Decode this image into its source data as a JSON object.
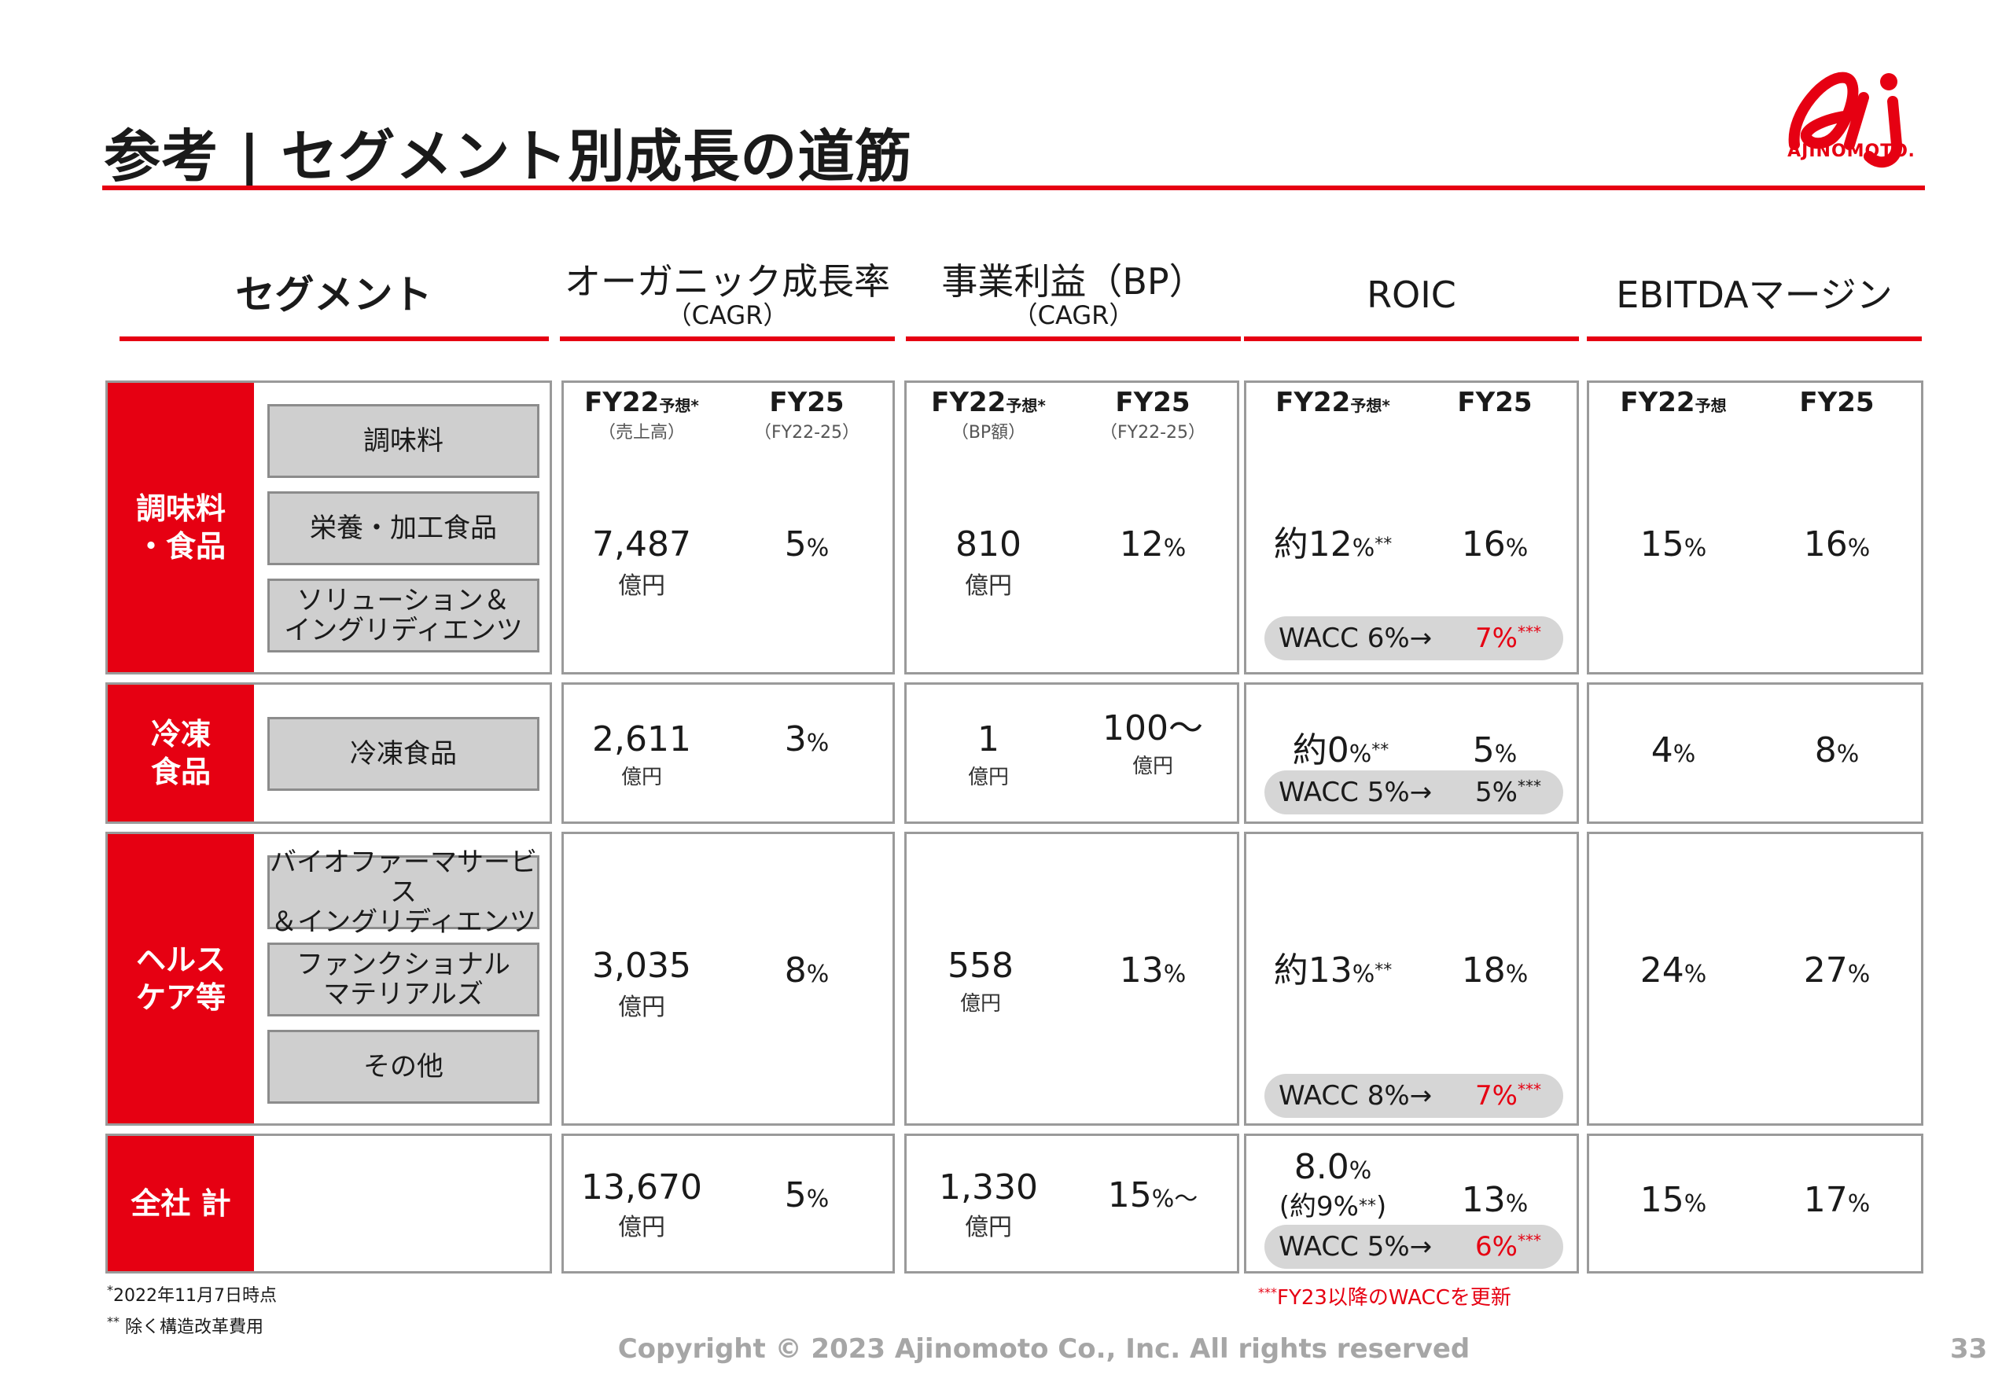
{
  "title": "参考 | セグメント別成長の道筋",
  "logo_text": "AJINOMOTO.",
  "columns": {
    "segment": "セグメント",
    "organic": {
      "main": "オーガニック成長率",
      "sub": "（CAGR）"
    },
    "bp": {
      "main": "事業利益（BP）",
      "sub": "（CAGR）"
    },
    "roic": "ROIC",
    "ebitda": "EBITDAマージン"
  },
  "subheaders": {
    "fy22": "FY22",
    "fy22_forecast": "予想",
    "star": "*",
    "fy25": "FY25",
    "organic_fy22_sub": "（売上高）",
    "organic_fy25_sub": "（FY22-25）",
    "bp_fy22_sub": "（BP額）",
    "bp_fy25_sub": "（FY22-25）"
  },
  "groups": [
    {
      "label": "調味料\n・食品",
      "segments": [
        "調味料",
        "栄養・加工食品",
        "ソリューション＆\nイングリディエンツ"
      ],
      "organic_fy22": "7,487",
      "organic_fy22_unit": "億円",
      "organic_fy25": "5",
      "bp_fy22": "810",
      "bp_fy22_unit": "億円",
      "bp_fy25": "12",
      "roic_fy22": "約12",
      "roic_fy25": "16",
      "wacc_label": "WACC 6%→",
      "wacc_new": "7%",
      "ebitda_fy22": "15",
      "ebitda_fy25": "16"
    },
    {
      "label": "冷凍\n食品",
      "segments": [
        "冷凍食品"
      ],
      "organic_fy22": "2,611",
      "organic_fy22_unit": "億円",
      "organic_fy25": "3",
      "bp_fy22": "1",
      "bp_fy22_unit": "億円",
      "bp_fy25": "100～",
      "bp_fy25_unit": "億円",
      "roic_fy22": "約0",
      "roic_fy25": "5",
      "wacc_label": "WACC 5%→",
      "wacc_new": "5%",
      "ebitda_fy22": "4",
      "ebitda_fy25": "8"
    },
    {
      "label": "ヘルス\nケア等",
      "segments": [
        "バイオファーマサービス\n＆イングリディエンツ",
        "ファンクショナル\nマテリアルズ",
        "その他"
      ],
      "organic_fy22": "3,035",
      "organic_fy22_unit": "億円",
      "organic_fy25": "8",
      "bp_fy22": "558",
      "bp_fy22_unit": "億円",
      "bp_fy25": "13",
      "roic_fy22": "約13",
      "roic_fy25": "18",
      "wacc_label": "WACC 8%→",
      "wacc_new": "7%",
      "ebitda_fy22": "24",
      "ebitda_fy25": "27"
    },
    {
      "label": "全社 計",
      "organic_fy22": "13,670",
      "organic_fy22_unit": "億円",
      "organic_fy25": "5",
      "bp_fy22": "1,330",
      "bp_fy22_unit": "億円",
      "bp_fy25": "15",
      "bp_fy25_suffix": "～",
      "roic_fy22": "8.0",
      "roic_fy22_paren": "(約9%",
      "roic_fy22_paren_close": ")",
      "roic_fy25": "13",
      "wacc_label": "WACC 5%→",
      "wacc_new": "6%",
      "ebitda_fy22": "15",
      "ebitda_fy25": "17"
    }
  ],
  "symbols": {
    "pct": "%",
    "star2": "**",
    "star3": "***"
  },
  "notes": {
    "n1_mark": "*",
    "n1": "2022年11月7日時点",
    "n2_mark": "**",
    "n2": " 除く構造改革費用",
    "n3_mark": "***",
    "n3": "FY23以降のWACCを更新"
  },
  "copyright": "Copyright © 2023 Ajinomoto Co., Inc. All rights reserved",
  "page_number": "33",
  "colors": {
    "accent": "#e60012",
    "pill": "#d6d6d6",
    "segment_button": "#cfcfcf"
  }
}
